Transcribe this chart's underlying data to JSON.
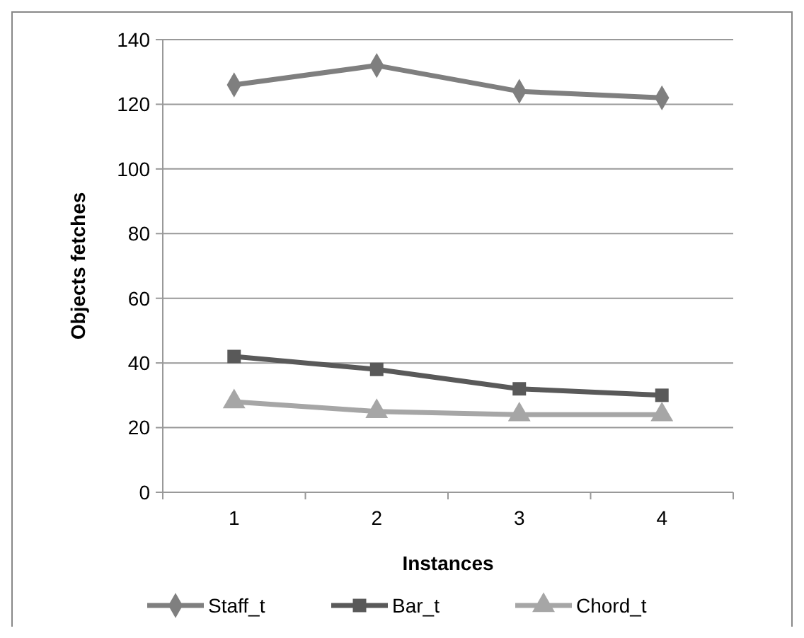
{
  "chart_data": {
    "type": "line",
    "xlabel": "Instances",
    "ylabel": "Objects fetches",
    "categories": [
      "1",
      "2",
      "3",
      "4"
    ],
    "series": [
      {
        "name": "Staff_t",
        "color": "#7f7f7f",
        "marker": "diamond",
        "values": [
          126,
          132,
          124,
          122
        ]
      },
      {
        "name": "Bar_t",
        "color": "#595959",
        "marker": "square",
        "values": [
          42,
          38,
          32,
          30
        ]
      },
      {
        "name": "Chord_t",
        "color": "#a6a6a6",
        "marker": "triangle",
        "values": [
          28,
          25,
          24,
          24
        ]
      }
    ],
    "ylim": [
      0,
      140
    ],
    "yticks": [
      0,
      20,
      40,
      60,
      80,
      100,
      120,
      140
    ],
    "grid": "y",
    "legend": "bottom"
  }
}
